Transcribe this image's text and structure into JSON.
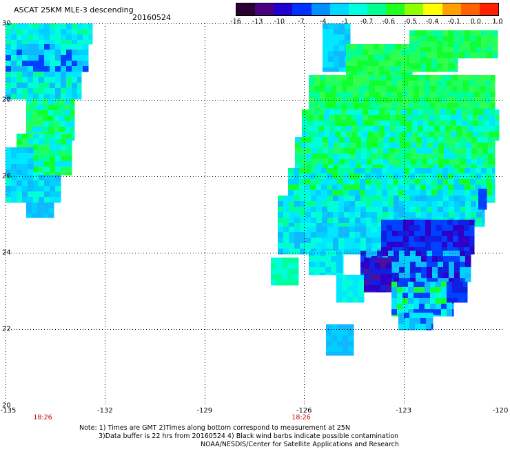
{
  "header": {
    "title": "ASCAT 25KM MLE-3 descending",
    "date": "20160524"
  },
  "colorbar": {
    "labels": [
      "-16",
      "-13",
      "-10",
      "-7",
      "-4",
      "-1",
      "-0.7",
      "-0.6",
      "-0.5",
      "-0.4",
      "-0.1",
      "0.0",
      "1.0"
    ],
    "colors": [
      "#2a0030",
      "#4a0080",
      "#2000d0",
      "#0030ff",
      "#0090ff",
      "#00d8ff",
      "#00ffe0",
      "#00ff90",
      "#20ff20",
      "#90ff00",
      "#ffff00",
      "#ffa000",
      "#ff6000",
      "#ff2000"
    ]
  },
  "axes": {
    "lat_labels": [
      "30",
      "28",
      "26",
      "24",
      "22",
      "20"
    ],
    "lon_labels": [
      "-135",
      "-132",
      "-129",
      "-126",
      "-123",
      "-120"
    ],
    "time_labels": [
      "18:26",
      "18:26"
    ]
  },
  "notes": {
    "line1": "Note: 1) Times are GMT 2)Times along bottom correspond to measurement at 25N",
    "line2": "3)Data buffer is 22 hrs from 20160524 4) Black wind barbs indicate possible contamination",
    "line3": "NOAA/NESDIS/Center for Satellite Applications and Research"
  }
}
